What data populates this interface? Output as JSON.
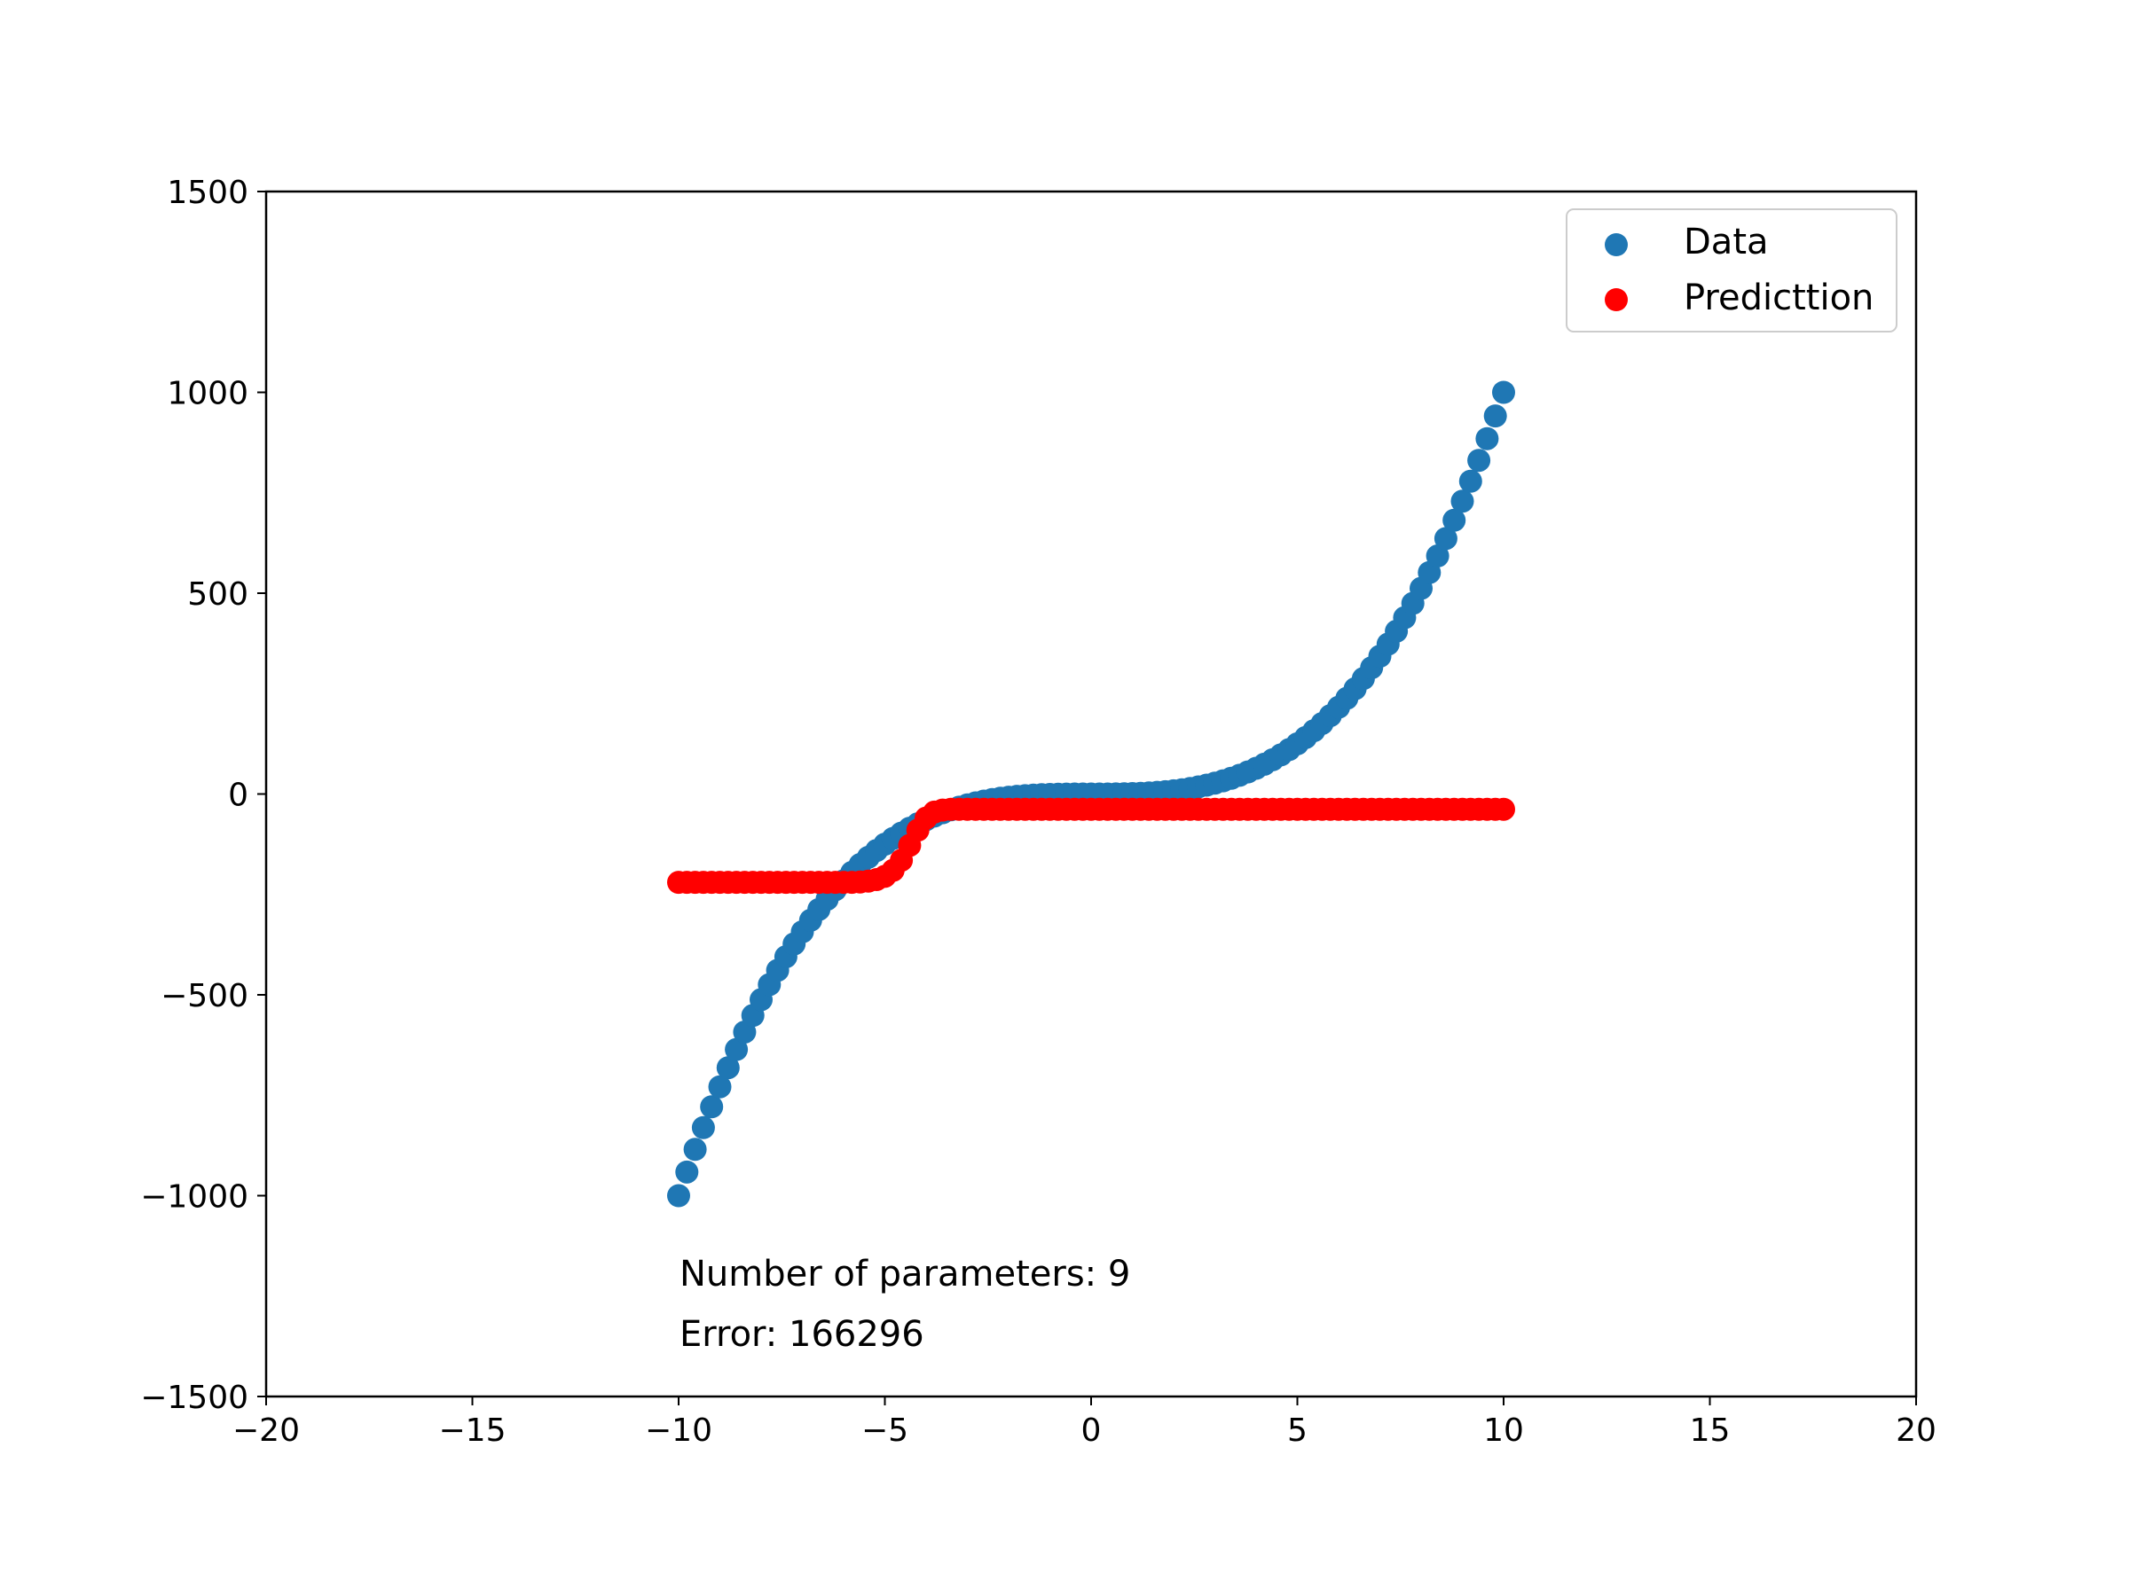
{
  "chart_data": {
    "type": "scatter",
    "title": "",
    "xlabel": "",
    "ylabel": "",
    "xlim": [
      -20,
      20
    ],
    "ylim": [
      -1500,
      1500
    ],
    "grid": false,
    "legend_position": "top-right",
    "x_ticks": [
      -20,
      -15,
      -10,
      -5,
      0,
      5,
      10,
      15,
      20
    ],
    "y_ticks": [
      -1500,
      -1000,
      -500,
      0,
      500,
      1000,
      1500
    ],
    "x_tick_labels": [
      "−20",
      "−15",
      "−10",
      "−5",
      "0",
      "5",
      "10",
      "15",
      "20"
    ],
    "y_tick_labels": [
      "−1500",
      "−1000",
      "−500",
      "0",
      "500",
      "1000",
      "1500"
    ],
    "series": [
      {
        "name": "Data",
        "color": "#1f77b4",
        "x": [
          -10.0,
          -9.8,
          -9.6,
          -9.4,
          -9.2,
          -9.0,
          -8.8,
          -8.6,
          -8.4,
          -8.2,
          -8.0,
          -7.8,
          -7.6,
          -7.4,
          -7.2,
          -7.0,
          -6.8,
          -6.6,
          -6.4,
          -6.2,
          -6.0,
          -5.8,
          -5.6,
          -5.4,
          -5.2,
          -5.0,
          -4.8,
          -4.6,
          -4.4,
          -4.2,
          -4.0,
          -3.8,
          -3.6,
          -3.4,
          -3.2,
          -3.0,
          -2.8,
          -2.6,
          -2.4,
          -2.2,
          -2.0,
          -1.8,
          -1.6,
          -1.4,
          -1.2,
          -1.0,
          -0.8,
          -0.6,
          -0.4,
          -0.2,
          0.0,
          0.2,
          0.4,
          0.6,
          0.8,
          1.0,
          1.2,
          1.4,
          1.6,
          1.8,
          2.0,
          2.2,
          2.4,
          2.6,
          2.8,
          3.0,
          3.2,
          3.4,
          3.6,
          3.8,
          4.0,
          4.2,
          4.4,
          4.6,
          4.8,
          5.0,
          5.2,
          5.4,
          5.6,
          5.8,
          6.0,
          6.2,
          6.4,
          6.6,
          6.8,
          7.0,
          7.2,
          7.4,
          7.6,
          7.8,
          8.0,
          8.2,
          8.4,
          8.6,
          8.8,
          9.0,
          9.2,
          9.4,
          9.6,
          9.8,
          10.0
        ],
        "y": [
          -1000.0,
          -941.2,
          -884.7,
          -830.6,
          -778.7,
          -729.0,
          -681.5,
          -636.1,
          -592.7,
          -551.4,
          -512.0,
          -474.6,
          -439.0,
          -405.2,
          -373.2,
          -343.0,
          -314.4,
          -287.5,
          -262.1,
          -238.3,
          -216.0,
          -195.1,
          -175.6,
          -157.5,
          -140.6,
          -125.0,
          -110.6,
          -97.3,
          -85.2,
          -74.1,
          -64.0,
          -54.9,
          -46.7,
          -39.3,
          -32.8,
          -27.0,
          -22.0,
          -17.6,
          -13.8,
          -10.6,
          -8.0,
          -5.8,
          -4.1,
          -2.7,
          -1.7,
          -1.0,
          -0.5,
          -0.2,
          -0.1,
          0.0,
          0.0,
          0.0,
          0.1,
          0.2,
          0.5,
          1.0,
          1.7,
          2.7,
          4.1,
          5.8,
          8.0,
          10.6,
          13.8,
          17.6,
          22.0,
          27.0,
          32.8,
          39.3,
          46.7,
          54.9,
          64.0,
          74.1,
          85.2,
          97.3,
          110.6,
          125.0,
          140.6,
          157.5,
          175.6,
          195.1,
          216.0,
          238.3,
          262.1,
          287.5,
          314.4,
          343.0,
          373.2,
          405.2,
          439.0,
          474.6,
          512.0,
          551.4,
          592.7,
          636.1,
          681.5,
          729.0,
          778.7,
          830.6,
          884.7,
          941.2,
          1000.0
        ]
      },
      {
        "name": "Predicttion",
        "color": "#ff0000",
        "x": [
          -10.0,
          -9.8,
          -9.6,
          -9.4,
          -9.2,
          -9.0,
          -8.8,
          -8.6,
          -8.4,
          -8.2,
          -8.0,
          -7.8,
          -7.6,
          -7.4,
          -7.2,
          -7.0,
          -6.8,
          -6.6,
          -6.4,
          -6.2,
          -6.0,
          -5.8,
          -5.6,
          -5.4,
          -5.2,
          -5.0,
          -4.8,
          -4.6,
          -4.4,
          -4.2,
          -4.0,
          -3.8,
          -3.6,
          -3.4,
          -3.2,
          -3.0,
          -2.8,
          -2.6,
          -2.4,
          -2.2,
          -2.0,
          -1.8,
          -1.6,
          -1.4,
          -1.2,
          -1.0,
          -0.8,
          -0.6,
          -0.4,
          -0.2,
          0.0,
          0.2,
          0.4,
          0.6,
          0.8,
          1.0,
          1.2,
          1.4,
          1.6,
          1.8,
          2.0,
          2.2,
          2.4,
          2.6,
          2.8,
          3.0,
          3.2,
          3.4,
          3.6,
          3.8,
          4.0,
          4.2,
          4.4,
          4.6,
          4.8,
          5.0,
          5.2,
          5.4,
          5.6,
          5.8,
          6.0,
          6.2,
          6.4,
          6.6,
          6.8,
          7.0,
          7.2,
          7.4,
          7.6,
          7.8,
          8.0,
          8.2,
          8.4,
          8.6,
          8.8,
          9.0,
          9.2,
          9.4,
          9.6,
          9.8,
          10.0
        ],
        "y": [
          -220,
          -220,
          -220,
          -220,
          -220,
          -220,
          -220,
          -220,
          -220,
          -220,
          -220,
          -220,
          -220,
          -220,
          -220,
          -220,
          -220,
          -220,
          -220,
          -220,
          -220,
          -220,
          -219,
          -217,
          -213,
          -205,
          -190,
          -165,
          -128,
          -90,
          -60,
          -45,
          -40,
          -38,
          -38,
          -38,
          -38,
          -38,
          -38,
          -38,
          -38,
          -38,
          -38,
          -38,
          -38,
          -38,
          -38,
          -38,
          -38,
          -38,
          -38,
          -38,
          -38,
          -38,
          -38,
          -38,
          -38,
          -38,
          -38,
          -38,
          -38,
          -38,
          -38,
          -38,
          -38,
          -38,
          -38,
          -38,
          -38,
          -38,
          -38,
          -38,
          -38,
          -38,
          -38,
          -38,
          -38,
          -38,
          -38,
          -38,
          -38,
          -38,
          -38,
          -38,
          -38,
          -38,
          -38,
          -38,
          -38,
          -38,
          -38,
          -38,
          -38,
          -38,
          -38,
          -38,
          -38,
          -38,
          -38,
          -38,
          -38
        ]
      }
    ],
    "annotations": [
      "Number of parameters: 9",
      "Error: 166296"
    ]
  }
}
